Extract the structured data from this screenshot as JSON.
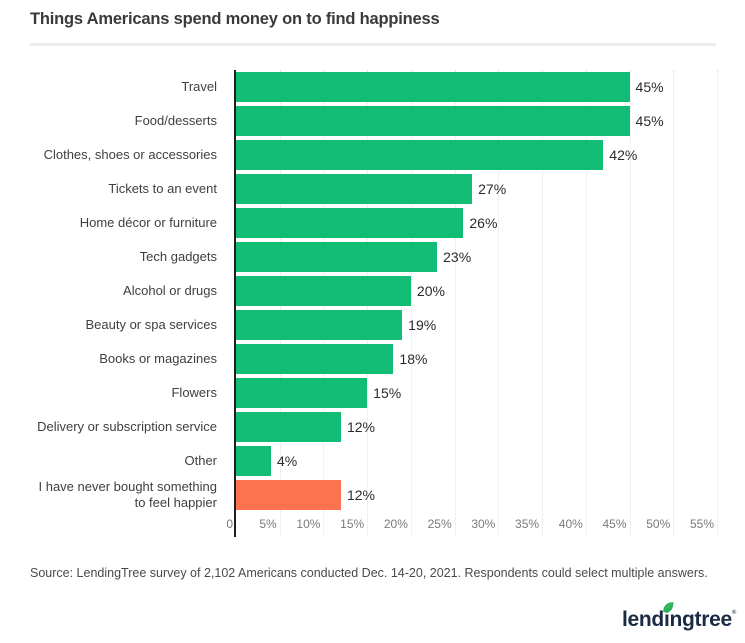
{
  "title": "Things Americans spend money on to find happiness",
  "source": "Source: LendingTree survey of 2,102 Americans conducted Dec. 14-20, 2021. Respondents could select multiple answers.",
  "logo": {
    "name": "lendingtree",
    "pre": "lend",
    "dotted_letter": "i",
    "post": "ngtree",
    "trademark": "®"
  },
  "colors": {
    "bar_green": "#12BC74",
    "bar_orange": "#FD7350",
    "axis": "#1F1F1F",
    "grid": "#E2E2E2",
    "tick_text": "#7A7A7A",
    "category_text": "#3F3F3F",
    "value_text": "#2B2B2B",
    "title_text": "#3A3A3A",
    "divider": "#ECECEC",
    "source_text": "#4A4A4A",
    "logo_navy": "#1B2A44",
    "logo_leaf_green": "#2CB25B"
  },
  "chart_data": {
    "type": "bar",
    "orientation": "horizontal",
    "title": "Things Americans spend money on to find happiness",
    "xlabel": "",
    "ylabel": "",
    "xlim": [
      0,
      55
    ],
    "grid": "vertical dotted gridlines every 5%",
    "legend": "none",
    "categories": [
      "Travel",
      "Food/desserts",
      "Clothes, shoes or accessories",
      "Tickets to an event",
      "Home décor or furniture",
      "Tech gadgets",
      "Alcohol or drugs",
      "Beauty or spa services",
      "Books or magazines",
      "Flowers",
      "Delivery or subscription service",
      "Other",
      "I have never bought something to feel happier"
    ],
    "values": [
      45,
      45,
      42,
      27,
      26,
      23,
      20,
      19,
      18,
      15,
      12,
      4,
      12
    ],
    "value_labels": [
      "45%",
      "45%",
      "42%",
      "27%",
      "26%",
      "23%",
      "20%",
      "19%",
      "18%",
      "15%",
      "12%",
      "4%",
      "12%"
    ],
    "bar_color_keys": [
      "green",
      "green",
      "green",
      "green",
      "green",
      "green",
      "green",
      "green",
      "green",
      "green",
      "green",
      "green",
      "orange"
    ],
    "x_ticks": [
      {
        "label": "0",
        "value": 0
      },
      {
        "label": "5%",
        "value": 5
      },
      {
        "label": "10%",
        "value": 10
      },
      {
        "label": "15%",
        "value": 15
      },
      {
        "label": "20%",
        "value": 20
      },
      {
        "label": "25%",
        "value": 25
      },
      {
        "label": "30%",
        "value": 30
      },
      {
        "label": "35%",
        "value": 35
      },
      {
        "label": "40%",
        "value": 40
      },
      {
        "label": "45%",
        "value": 45
      },
      {
        "label": "50%",
        "value": 50
      },
      {
        "label": "55%",
        "value": 55
      }
    ]
  }
}
